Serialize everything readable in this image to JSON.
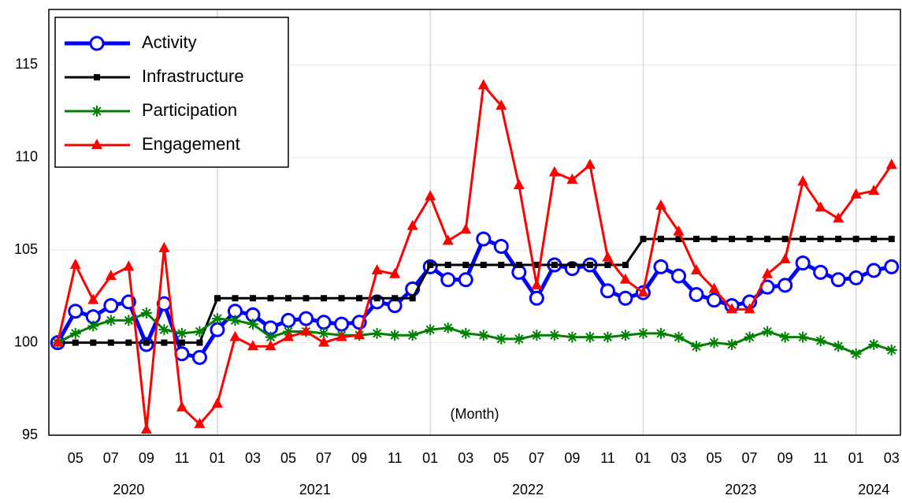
{
  "chart_data": {
    "type": "line",
    "categories": [
      null,
      "05",
      null,
      "07",
      null,
      "09",
      null,
      "11",
      null,
      "01",
      null,
      "03",
      null,
      "05",
      null,
      "07",
      null,
      "09",
      null,
      "11",
      null,
      "01",
      null,
      "03",
      null,
      "05",
      null,
      "07",
      null,
      "09",
      null,
      "11",
      null,
      "01",
      null,
      "03",
      null,
      "05",
      null,
      "07",
      null,
      "09",
      null,
      "11",
      null,
      "01",
      null,
      "03"
    ],
    "years": [
      "2020",
      "2021",
      "2022",
      "2023",
      "2024"
    ],
    "annotation": "(Month)",
    "ylim": [
      95,
      118
    ],
    "yticks": [
      95,
      100,
      105,
      110,
      115
    ],
    "grid": true,
    "legend": "upper-left",
    "series": [
      {
        "name": "Activity",
        "color": "#0000ff",
        "marker": "open-circle",
        "values": [
          100,
          101.7,
          101.4,
          102.0,
          102.2,
          99.9,
          102.1,
          99.4,
          99.2,
          100.7,
          101.7,
          101.5,
          100.8,
          101.2,
          101.3,
          101.1,
          101.0,
          101.1,
          102.2,
          102.0,
          102.9,
          104.1,
          103.4,
          103.4,
          105.6,
          105.2,
          103.8,
          102.4,
          104.2,
          104.0,
          104.2,
          102.8,
          102.4,
          102.7,
          104.1,
          103.6,
          102.6,
          102.3,
          102.0,
          102.2,
          103.0,
          103.1,
          104.3,
          103.8,
          103.4,
          103.5,
          103.9,
          104.1
        ]
      },
      {
        "name": "Infrastructure",
        "color": "#000000",
        "marker": "square",
        "values": [
          100,
          100,
          100,
          100,
          100,
          100,
          100,
          100,
          100,
          102.4,
          102.4,
          102.4,
          102.4,
          102.4,
          102.4,
          102.4,
          102.4,
          102.4,
          102.4,
          102.4,
          102.4,
          104.2,
          104.2,
          104.2,
          104.2,
          104.2,
          104.2,
          104.2,
          104.2,
          104.2,
          104.2,
          104.2,
          104.2,
          105.6,
          105.6,
          105.6,
          105.6,
          105.6,
          105.6,
          105.6,
          105.6,
          105.6,
          105.6,
          105.6,
          105.6,
          105.6,
          105.6,
          105.6
        ]
      },
      {
        "name": "Participation",
        "color": "#008000",
        "marker": "asterisk",
        "values": [
          100,
          100.5,
          100.9,
          101.2,
          101.2,
          101.6,
          100.7,
          100.5,
          100.6,
          101.3,
          101.2,
          101.0,
          100.3,
          100.6,
          100.6,
          100.5,
          100.4,
          100.4,
          100.5,
          100.4,
          100.4,
          100.7,
          100.8,
          100.5,
          100.4,
          100.2,
          100.2,
          100.4,
          100.4,
          100.3,
          100.3,
          100.3,
          100.4,
          100.5,
          100.5,
          100.3,
          99.8,
          100.0,
          99.9,
          100.3,
          100.6,
          100.3,
          100.3,
          100.1,
          99.8,
          99.4,
          99.9,
          99.6
        ]
      },
      {
        "name": "Engagement",
        "color": "#ff0000",
        "marker": "triangle",
        "values": [
          100,
          104.2,
          102.3,
          103.6,
          104.1,
          95.3,
          105.1,
          96.5,
          95.6,
          96.7,
          100.3,
          99.8,
          99.8,
          100.3,
          100.6,
          100.0,
          100.3,
          100.4,
          103.9,
          103.7,
          106.3,
          107.9,
          105.5,
          106.1,
          113.9,
          112.8,
          108.5,
          103.1,
          109.2,
          108.8,
          109.6,
          104.6,
          103.4,
          102.7,
          107.4,
          106.0,
          103.9,
          102.9,
          101.8,
          101.8,
          103.7,
          104.5,
          108.7,
          107.3,
          106.7,
          108.0,
          108.2,
          109.6
        ]
      }
    ]
  }
}
